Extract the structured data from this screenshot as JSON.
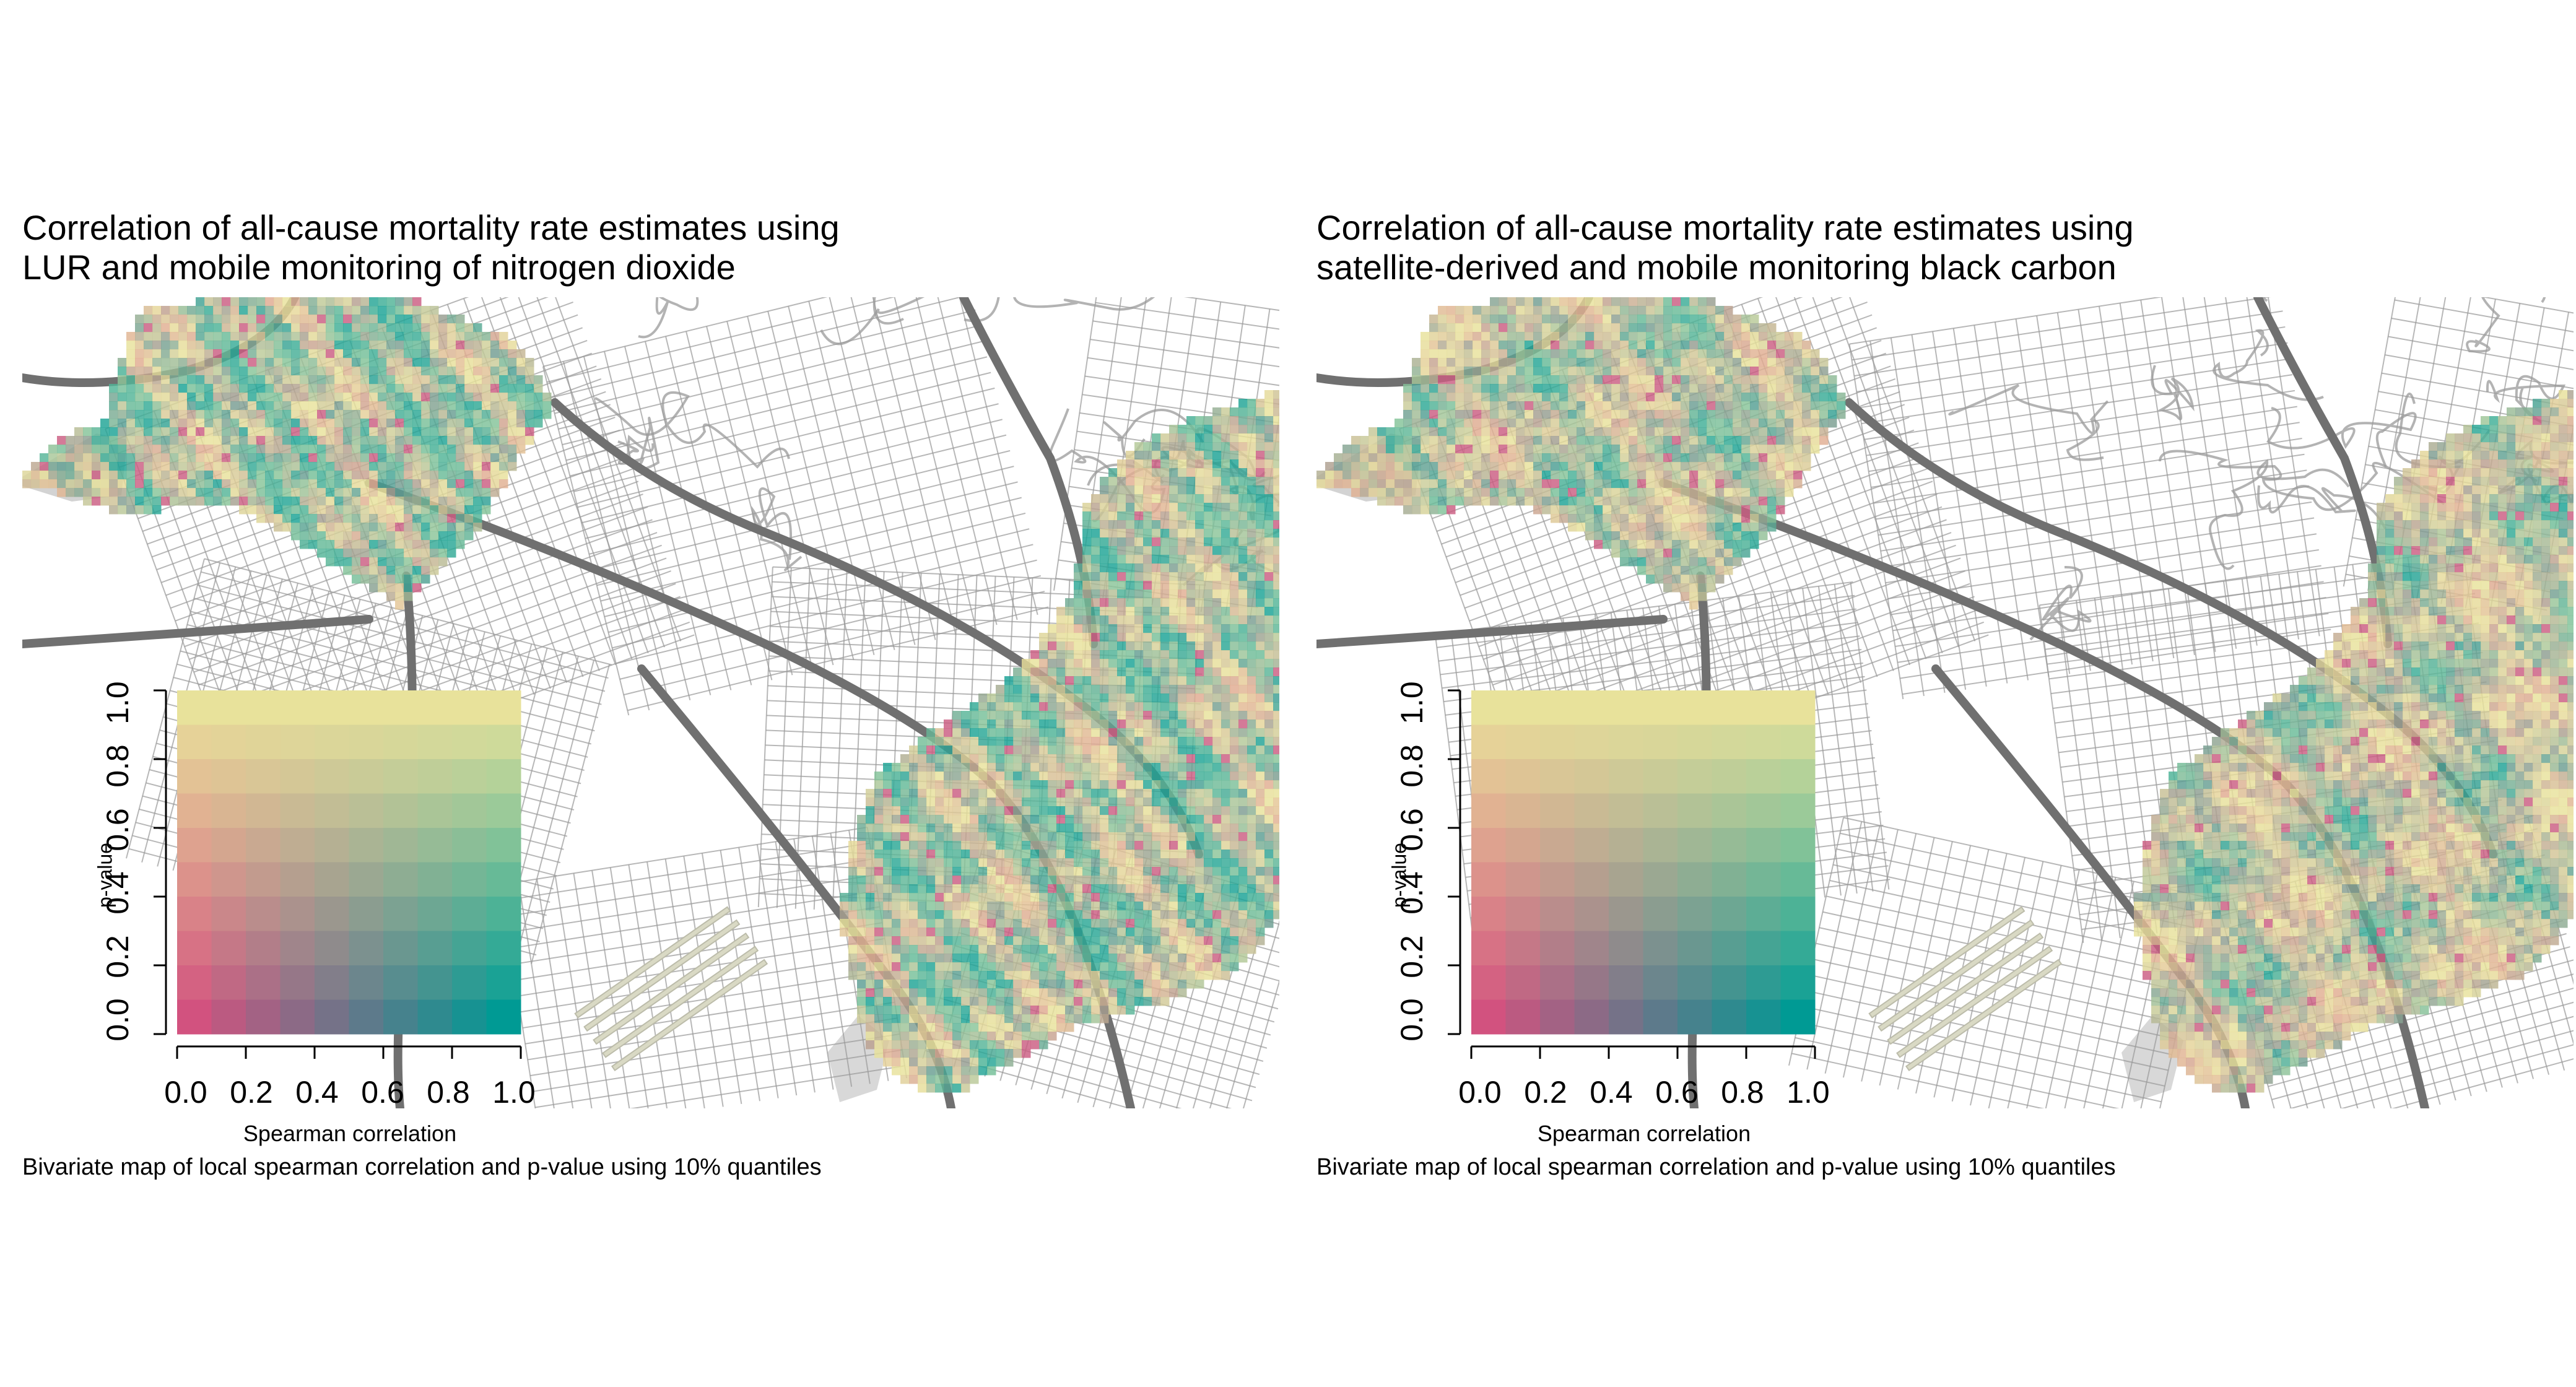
{
  "panels": [
    {
      "title_line1": "Correlation of all-cause mortality rate estimates using",
      "title_line2": "LUR and mobile monitoring of nitrogen dioxide",
      "caption": "Bivariate map of local spearman correlation and p-value using 10% quantiles",
      "legend": {
        "x_label": "Spearman correlation",
        "y_label": "p-value",
        "x_ticks": [
          "0.0",
          "0.2",
          "0.4",
          "0.6",
          "0.8",
          "1.0"
        ],
        "y_ticks": [
          "0.0",
          "0.2",
          "0.4",
          "0.6",
          "0.8",
          "1.0"
        ]
      }
    },
    {
      "title_line1": "Correlation of all-cause mortality rate estimates using",
      "title_line2": "satellite-derived and mobile monitoring black carbon",
      "caption": "Bivariate map of local spearman correlation and p-value using 10% quantiles",
      "legend": {
        "x_label": "Spearman correlation",
        "y_label": "p-value",
        "x_ticks": [
          "0.0",
          "0.2",
          "0.4",
          "0.6",
          "0.8",
          "1.0"
        ],
        "y_ticks": [
          "0.0",
          "0.2",
          "0.4",
          "0.6",
          "0.8",
          "1.0"
        ]
      }
    }
  ],
  "colors": {
    "low_corr_low_p": "#d2527f",
    "low_corr_high_p": "#e8e29b",
    "high_corr_low_p": "#009a94",
    "high_corr_high_p": "#e8e29b",
    "roads": "#9a9a9a",
    "highways": "#707070",
    "water_park": "#c8c8c8"
  }
}
